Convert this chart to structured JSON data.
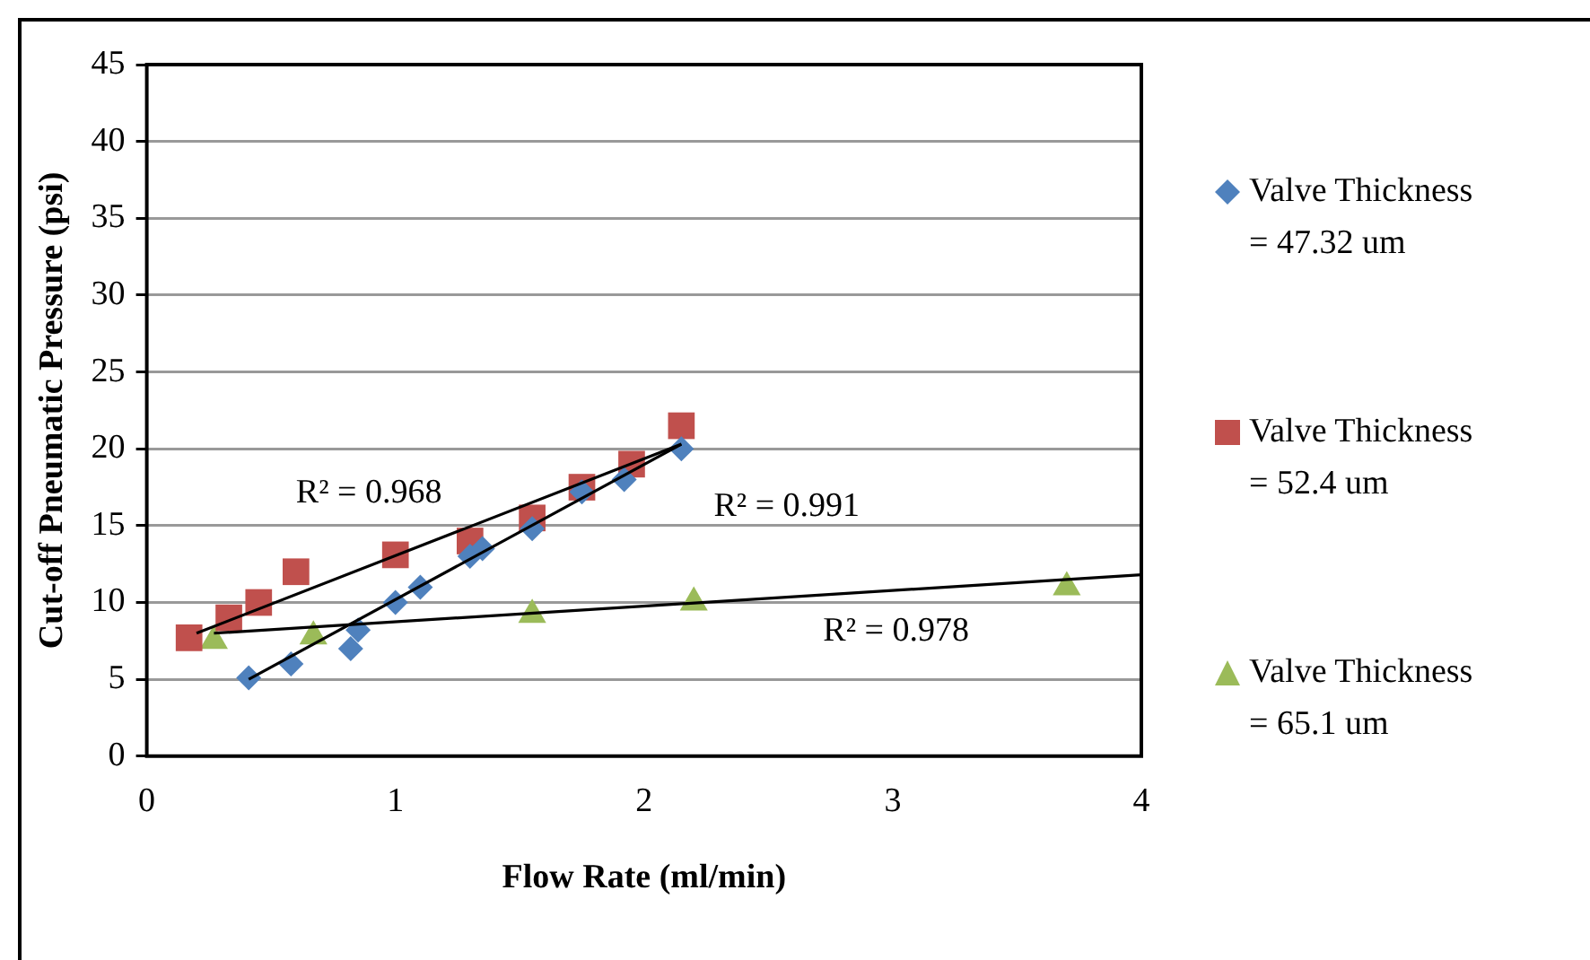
{
  "chart_data": {
    "type": "scatter",
    "xlabel": "Flow Rate (ml/min)",
    "ylabel": "Cut-off Pneumatic Pressure (psi)",
    "xlim": [
      0,
      4
    ],
    "xticks": [
      0,
      1,
      2,
      3,
      4
    ],
    "ylim": [
      0,
      45
    ],
    "yticks": [
      0,
      5,
      10,
      15,
      20,
      25,
      30,
      35,
      40,
      45
    ],
    "grid": "y",
    "legend": "right",
    "series": [
      {
        "name": "Valve Thickness = 47.32 um",
        "color": "#4f81bd",
        "marker": "diamond",
        "x": [
          0.41,
          0.58,
          0.82,
          0.85,
          1.0,
          1.1,
          1.3,
          1.35,
          1.55,
          1.75,
          1.92,
          2.15
        ],
        "values": [
          5.1,
          6,
          7,
          8.2,
          10,
          11,
          13,
          13.5,
          14.8,
          17.2,
          18,
          20
        ]
      },
      {
        "name": "Valve Thickness = 52.4 um",
        "color": "#c0504d",
        "marker": "square",
        "x": [
          0.17,
          0.33,
          0.45,
          0.6,
          1.0,
          1.3,
          1.55,
          1.75,
          1.95,
          2.15
        ],
        "values": [
          7.7,
          9,
          10,
          12,
          13.1,
          14,
          15.5,
          17.5,
          19,
          21.5
        ]
      },
      {
        "name": "Valve Thickness = 65.1 um",
        "color": "#9bbb59",
        "marker": "triangle",
        "x": [
          0.27,
          0.67,
          1.55,
          2.2,
          3.7
        ],
        "values": [
          7.5,
          7.8,
          9.2,
          10,
          11
        ]
      },
      {
        "type": "line",
        "color": "#000000",
        "marker": "none",
        "x": [
          0.41,
          2.15
        ],
        "values": [
          5,
          20.3
        ]
      },
      {
        "type": "line",
        "color": "#000000",
        "marker": "none",
        "x": [
          0.2,
          2.15
        ],
        "values": [
          8,
          20.3
        ]
      },
      {
        "type": "line",
        "color": "#000000",
        "marker": "none",
        "x": [
          0.27,
          4
        ],
        "values": [
          8,
          11.8
        ]
      }
    ],
    "annotations": [
      "R² = 0.968",
      "R² = 0.991",
      "R² = 0.978"
    ]
  }
}
